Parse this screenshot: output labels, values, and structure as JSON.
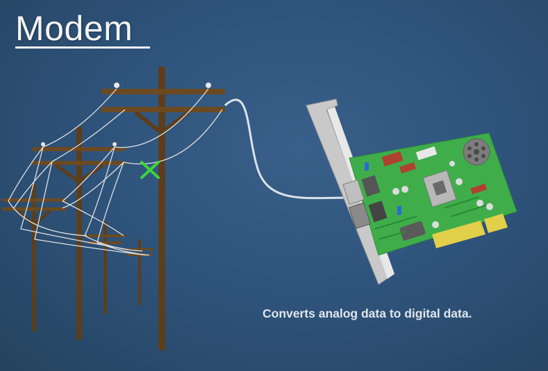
{
  "slide": {
    "title": "Modem",
    "caption": "Converts analog data to digital data.",
    "colors": {
      "background": "#2f547c",
      "pole": "#6b4a22",
      "wire": "#e6e6e6",
      "marker": "#3cd63c",
      "circuit_board": "#3fae4a",
      "gold_contacts": "#e2cf4a",
      "bracket": "#c9c9c9"
    },
    "icons": [
      "utility-pole-icon",
      "wire-tap-marker-icon",
      "network-card-icon"
    ]
  }
}
